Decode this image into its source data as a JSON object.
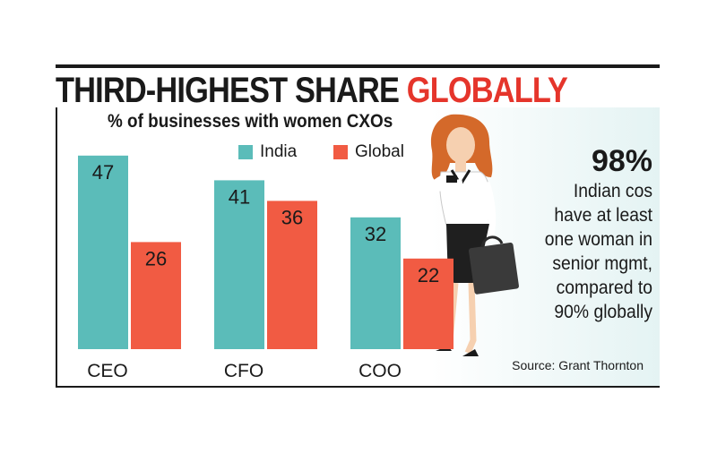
{
  "headline": {
    "main": "THIRD-HIGHEST SHARE ",
    "accent": "GLOBALLY"
  },
  "colors": {
    "india": "#5bbcb9",
    "global": "#f15b43",
    "accent": "#e5352b"
  },
  "chart_data": {
    "type": "bar",
    "title": "% of businesses with women CXOs",
    "categories": [
      "CEO",
      "CFO",
      "COO"
    ],
    "series": [
      {
        "name": "India",
        "values": [
          47,
          41,
          32
        ]
      },
      {
        "name": "Global",
        "values": [
          26,
          36,
          22
        ]
      }
    ],
    "ylim": [
      0,
      50
    ],
    "grid": false,
    "legend_position": "top"
  },
  "callout": {
    "value": "98%",
    "lines": [
      "Indian cos",
      "have at least",
      "one woman in",
      "senior mgmt,",
      "compared to",
      "90% globally"
    ]
  },
  "source": "Source: Grant Thornton"
}
